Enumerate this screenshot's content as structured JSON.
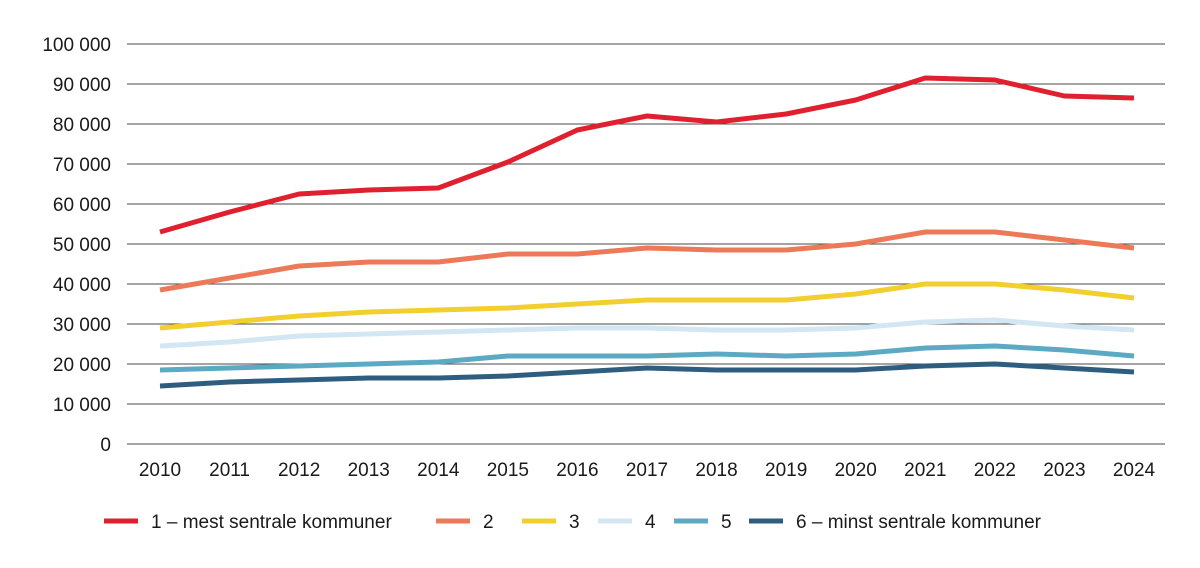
{
  "chart_data": {
    "type": "line",
    "title": "",
    "xlabel": "",
    "ylabel": "",
    "x": [
      "2010",
      "2011",
      "2012",
      "2013",
      "2014",
      "2015",
      "2016",
      "2017",
      "2018",
      "2019",
      "2020",
      "2021",
      "2022",
      "2023",
      "2024"
    ],
    "ylim": [
      0,
      100000
    ],
    "yticks": [
      0,
      10000,
      20000,
      30000,
      40000,
      50000,
      60000,
      70000,
      80000,
      90000,
      100000
    ],
    "ytick_labels": [
      "0",
      "10 000",
      "20 000",
      "30 000",
      "40 000",
      "50 000",
      "60 000",
      "70 000",
      "80 000",
      "90 000",
      "100 000"
    ],
    "grid": true,
    "legend_position": "bottom",
    "series": [
      {
        "name": "1 – mest sentrale kommuner",
        "color": "#e0202e",
        "values": [
          53000,
          58000,
          62500,
          63500,
          64000,
          70500,
          78500,
          82000,
          80500,
          82500,
          86000,
          91500,
          91000,
          87000,
          86500
        ]
      },
      {
        "name": "2",
        "color": "#ec7a58",
        "values": [
          38500,
          41500,
          44500,
          45500,
          45500,
          47500,
          47500,
          49000,
          48500,
          48500,
          50000,
          53000,
          53000,
          51000,
          49000
        ]
      },
      {
        "name": "3",
        "color": "#f2cf2e",
        "values": [
          29000,
          30500,
          32000,
          33000,
          33500,
          34000,
          35000,
          36000,
          36000,
          36000,
          37500,
          40000,
          40000,
          38500,
          36500
        ]
      },
      {
        "name": "4",
        "color": "#d3e6f4",
        "values": [
          24500,
          25500,
          27000,
          27500,
          28000,
          28500,
          29000,
          29000,
          28500,
          28500,
          29000,
          30500,
          31000,
          29500,
          28500
        ]
      },
      {
        "name": "5",
        "color": "#5ba9c2",
        "values": [
          18500,
          19000,
          19500,
          20000,
          20500,
          22000,
          22000,
          22000,
          22500,
          22000,
          22500,
          24000,
          24500,
          23500,
          22000
        ]
      },
      {
        "name": "6 – minst sentrale kommuner",
        "color": "#2f5d80",
        "values": [
          14500,
          15500,
          16000,
          16500,
          16500,
          17000,
          18000,
          19000,
          18500,
          18500,
          18500,
          19500,
          20000,
          19000,
          18000
        ]
      }
    ]
  }
}
